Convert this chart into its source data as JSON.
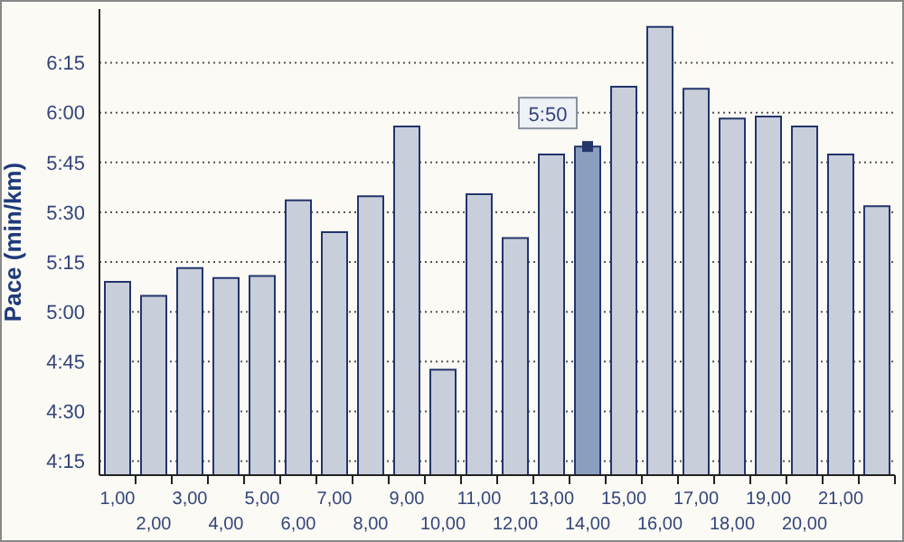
{
  "chart_data": {
    "type": "bar",
    "ylabel": "Pace (min/km)",
    "categories": [
      "1,00",
      "2,00",
      "3,00",
      "4,00",
      "5,00",
      "6,00",
      "7,00",
      "8,00",
      "9,00",
      "10,00",
      "11,00",
      "12,00",
      "13,00",
      "14,00",
      "15,00",
      "16,00",
      "17,00",
      "18,00",
      "19,00",
      "20,00",
      "21,00",
      null
    ],
    "values": [
      5.15,
      5.08,
      5.22,
      5.17,
      5.18,
      5.56,
      5.4,
      5.58,
      5.93,
      4.71,
      5.59,
      5.37,
      5.79,
      5.83,
      6.13,
      6.43,
      6.12,
      5.97,
      5.98,
      5.93,
      5.79,
      5.53
    ],
    "colors": [
      "#c8ceda",
      "#c8ceda",
      "#c8ceda",
      "#c8ceda",
      "#c8ceda",
      "#c8ceda",
      "#c8ceda",
      "#c8ceda",
      "#c8ceda",
      "#c8ceda",
      "#c8ceda",
      "#c8ceda",
      "#c8ceda",
      "#8a9fbf",
      "#c8ceda",
      "#c8ceda",
      "#c8ceda",
      "#c8ceda",
      "#c8ceda",
      "#c8ceda",
      "#c8ceda",
      "#c8ceda"
    ],
    "ylim": [
      4.18,
      6.52
    ],
    "yticks": [
      {
        "value": 4.25,
        "label": "4:15"
      },
      {
        "value": 4.5,
        "label": "4:30"
      },
      {
        "value": 4.75,
        "label": "4:45"
      },
      {
        "value": 5,
        "label": "5:00"
      },
      {
        "value": 5.25,
        "label": "5:15"
      },
      {
        "value": 5.5,
        "label": "5:30"
      },
      {
        "value": 5.75,
        "label": "5:45"
      },
      {
        "value": 6,
        "label": "6:00"
      },
      {
        "value": 6.25,
        "label": "6:15"
      }
    ],
    "grid": "y",
    "annotations": [
      {
        "text": "5:50",
        "x": "14,00",
        "y": 5.83
      }
    ]
  }
}
